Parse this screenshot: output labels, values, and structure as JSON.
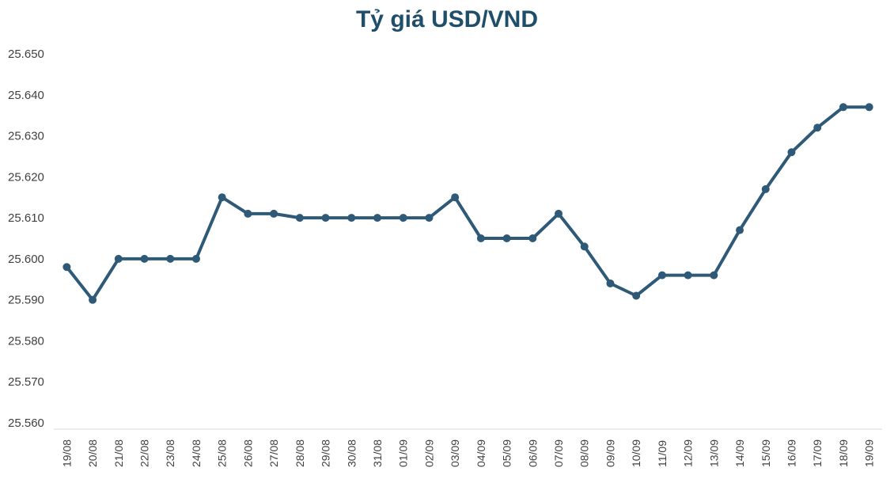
{
  "chart_data": {
    "type": "line",
    "title": "Tỷ giá USD/VND",
    "xlabel": "",
    "ylabel": "",
    "ylim": [
      25560,
      25650
    ],
    "y_ticks": [
      "25.560",
      "25.570",
      "25.580",
      "25.590",
      "25.600",
      "25.610",
      "25.620",
      "25.630",
      "25.640",
      "25.650"
    ],
    "y_tick_values": [
      25560,
      25570,
      25580,
      25590,
      25600,
      25610,
      25620,
      25630,
      25640,
      25650
    ],
    "grid": false,
    "legend": "none",
    "categories": [
      "19/08",
      "20/08",
      "21/08",
      "22/08",
      "23/08",
      "24/08",
      "25/08",
      "26/08",
      "27/08",
      "28/08",
      "29/08",
      "30/08",
      "31/08",
      "01/09",
      "02/09",
      "03/09",
      "04/09",
      "05/09",
      "06/09",
      "07/09",
      "08/09",
      "09/09",
      "10/09",
      "11/09",
      "12/09",
      "13/09",
      "14/09",
      "15/09",
      "16/09",
      "17/09",
      "18/09",
      "19/09"
    ],
    "series": [
      {
        "color": "#2E5A78",
        "values": [
          25598,
          25590,
          25600,
          25600,
          25600,
          25600,
          25615,
          25611,
          25611,
          25610,
          25610,
          25610,
          25610,
          25610,
          25610,
          25615,
          25605,
          25605,
          25605,
          25611,
          25603,
          25594,
          25591,
          25596,
          25596,
          25596,
          25607,
          25617,
          25626,
          25632,
          25637,
          25637
        ]
      }
    ]
  }
}
